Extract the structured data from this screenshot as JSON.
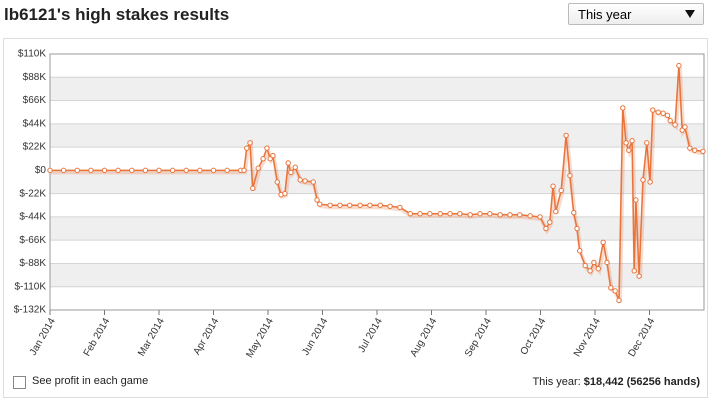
{
  "header": {
    "title": "lb6121's high stakes results",
    "dropdown": "This year"
  },
  "chart_data": {
    "type": "line",
    "color": "#e8743b",
    "grid": true,
    "xlim": [
      0,
      12
    ],
    "xticks": [
      {
        "value": 0,
        "label": "Jan 2014"
      },
      {
        "value": 1,
        "label": "Feb 2014"
      },
      {
        "value": 2,
        "label": "Mar 2014"
      },
      {
        "value": 3,
        "label": "Apr 2014"
      },
      {
        "value": 4,
        "label": "May 2014"
      },
      {
        "value": 5,
        "label": "Jun 2014"
      },
      {
        "value": 6,
        "label": "Jul 2014"
      },
      {
        "value": 7,
        "label": "Aug 2014"
      },
      {
        "value": 8,
        "label": "Sep 2014"
      },
      {
        "value": 9,
        "label": "Oct 2014"
      },
      {
        "value": 10,
        "label": "Nov 2014"
      },
      {
        "value": 11,
        "label": "Dec 2014"
      }
    ],
    "ylim": [
      -132000,
      110000
    ],
    "yticks": [
      {
        "value": 110000,
        "label": "$110K"
      },
      {
        "value": 88000,
        "label": "$88K"
      },
      {
        "value": 66000,
        "label": "$66K"
      },
      {
        "value": 44000,
        "label": "$44K"
      },
      {
        "value": 22000,
        "label": "$22K"
      },
      {
        "value": 0,
        "label": "$0"
      },
      {
        "value": -22000,
        "label": "$-22K"
      },
      {
        "value": -44000,
        "label": "$-44K"
      },
      {
        "value": -66000,
        "label": "$-66K"
      },
      {
        "value": -88000,
        "label": "$-88K"
      },
      {
        "value": -110000,
        "label": "$-110K"
      },
      {
        "value": -132000,
        "label": "$-132K"
      }
    ],
    "x": [
      0,
      0.25,
      0.5,
      0.75,
      1,
      1.25,
      1.5,
      1.75,
      2,
      2.25,
      2.5,
      2.75,
      3,
      3.25,
      3.5,
      3.56,
      3.61,
      3.67,
      3.72,
      3.82,
      3.91,
      3.98,
      4.04,
      4.09,
      4.17,
      4.24,
      4.31,
      4.37,
      4.42,
      4.5,
      4.59,
      4.68,
      4.83,
      4.9,
      4.95,
      5.14,
      5.32,
      5.5,
      5.69,
      5.87,
      6.06,
      6.24,
      6.42,
      6.61,
      6.79,
      6.97,
      7.16,
      7.34,
      7.52,
      7.71,
      7.89,
      8.07,
      8.26,
      8.44,
      8.62,
      8.81,
      8.99,
      9.1,
      9.17,
      9.23,
      9.28,
      9.38,
      9.47,
      9.54,
      9.61,
      9.67,
      9.72,
      9.82,
      9.91,
      9.98,
      10.06,
      10.15,
      10.22,
      10.29,
      10.37,
      10.44,
      10.51,
      10.57,
      10.62,
      10.68,
      10.72,
      10.75,
      10.81,
      10.88,
      10.95,
      11.01,
      11.06,
      11.16,
      11.25,
      11.33,
      11.38,
      11.47,
      11.54,
      11.6,
      11.65,
      11.74,
      11.83,
      11.98
    ],
    "values": [
      0,
      0,
      0,
      0,
      0,
      0,
      0,
      0,
      0,
      0,
      0,
      0,
      0,
      0,
      0,
      0,
      21000,
      26000,
      -17000,
      2000,
      11000,
      21000,
      11000,
      14000,
      -11000,
      -23000,
      -22000,
      7000,
      -2000,
      3000,
      -9000,
      -10000,
      -11000,
      -28000,
      -32000,
      -33000,
      -33000,
      -33000,
      -33000,
      -33000,
      -33000,
      -34000,
      -35000,
      -41000,
      -41000,
      -41000,
      -41000,
      -41000,
      -41000,
      -42000,
      -41000,
      -41000,
      -42000,
      -42000,
      -42000,
      -43000,
      -44000,
      -55000,
      -49000,
      -15000,
      -39000,
      -19000,
      33000,
      -5000,
      -40000,
      -55000,
      -76000,
      -90000,
      -95000,
      -87000,
      -93000,
      -68000,
      -87000,
      -111000,
      -114000,
      -123000,
      59000,
      26000,
      19000,
      28000,
      -95000,
      -28000,
      -100000,
      -9000,
      26000,
      -11000,
      57000,
      55000,
      54000,
      52000,
      47000,
      43000,
      99000,
      38000,
      41000,
      21000,
      19000,
      18000
    ]
  },
  "footer": {
    "checkbox_label": "See profit in each game",
    "summary_label": "This year:",
    "profit": "$18,442",
    "hands": "(56256 hands)"
  }
}
